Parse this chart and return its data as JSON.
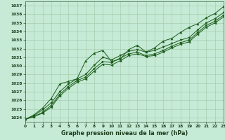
{
  "title": "Graphe pression niveau de la mer (hPa)",
  "xlim": [
    0,
    23
  ],
  "ylim": [
    1023.5,
    1037.5
  ],
  "xticks": [
    0,
    1,
    2,
    3,
    4,
    5,
    6,
    7,
    8,
    9,
    10,
    11,
    12,
    13,
    14,
    15,
    16,
    17,
    18,
    19,
    20,
    21,
    22,
    23
  ],
  "yticks": [
    1024,
    1025,
    1026,
    1027,
    1028,
    1029,
    1030,
    1031,
    1032,
    1033,
    1034,
    1035,
    1036,
    1037
  ],
  "background_color": "#c5ead5",
  "grid_color": "#a0c8a8",
  "line_color": "#1a5c1a",
  "series": [
    [
      1023.8,
      1024.3,
      1025.1,
      1026.2,
      1027.9,
      1028.2,
      1028.5,
      1030.6,
      1031.5,
      1031.8,
      1030.5,
      1030.8,
      1031.9,
      1032.4,
      1031.6,
      1032.1,
      1032.9,
      1033.2,
      1033.9,
      1034.5,
      1034.9,
      1035.6,
      1036.1,
      1036.9
    ],
    [
      1023.8,
      1024.2,
      1024.9,
      1025.7,
      1027.0,
      1027.9,
      1028.5,
      1029.0,
      1030.1,
      1031.0,
      1030.7,
      1031.2,
      1031.7,
      1031.9,
      1031.6,
      1031.8,
      1032.2,
      1032.6,
      1033.0,
      1033.3,
      1034.2,
      1035.0,
      1035.5,
      1036.2
    ],
    [
      1023.8,
      1024.1,
      1024.6,
      1025.4,
      1026.7,
      1027.6,
      1028.3,
      1028.7,
      1029.7,
      1030.5,
      1030.4,
      1030.9,
      1031.4,
      1031.6,
      1031.2,
      1031.4,
      1031.8,
      1032.3,
      1032.7,
      1033.0,
      1033.9,
      1034.7,
      1035.2,
      1035.9
    ],
    [
      1023.8,
      1024.1,
      1024.5,
      1025.2,
      1026.5,
      1027.4,
      1028.1,
      1028.5,
      1029.4,
      1030.2,
      1030.1,
      1030.6,
      1031.2,
      1031.4,
      1031.1,
      1031.2,
      1031.6,
      1032.1,
      1032.5,
      1032.8,
      1033.7,
      1034.5,
      1035.0,
      1035.7
    ]
  ]
}
